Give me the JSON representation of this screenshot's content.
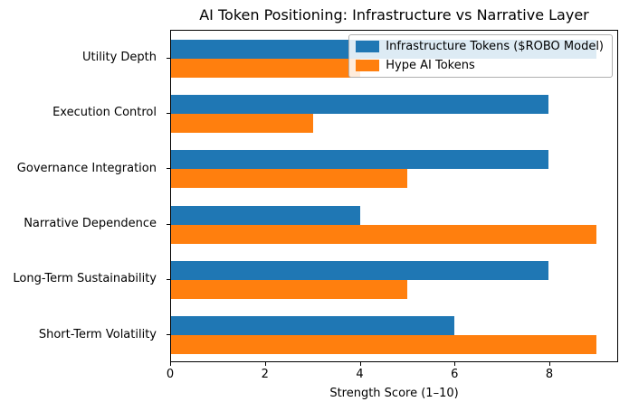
{
  "chart_data": {
    "type": "bar",
    "orientation": "horizontal",
    "title": "AI Token Positioning: Infrastructure vs Narrative Layer",
    "xlabel": "Strength Score (1–10)",
    "ylabel": "",
    "categories": [
      "Utility Depth",
      "Execution Control",
      "Governance Integration",
      "Narrative Dependence",
      "Long-Term Sustainability",
      "Short-Term Volatility"
    ],
    "series": [
      {
        "name": "Infrastructure Tokens ($ROBO Model)",
        "color": "#1f77b4",
        "values": [
          9,
          8,
          8,
          4,
          8,
          6
        ]
      },
      {
        "name": "Hype AI Tokens",
        "color": "#ff7f0e",
        "values": [
          4,
          3,
          5,
          9,
          5,
          9
        ]
      }
    ],
    "xlim": [
      0,
      9.45
    ],
    "xticks": [
      0,
      2,
      4,
      6,
      8
    ],
    "grid": false,
    "legend_position": "upper right"
  }
}
